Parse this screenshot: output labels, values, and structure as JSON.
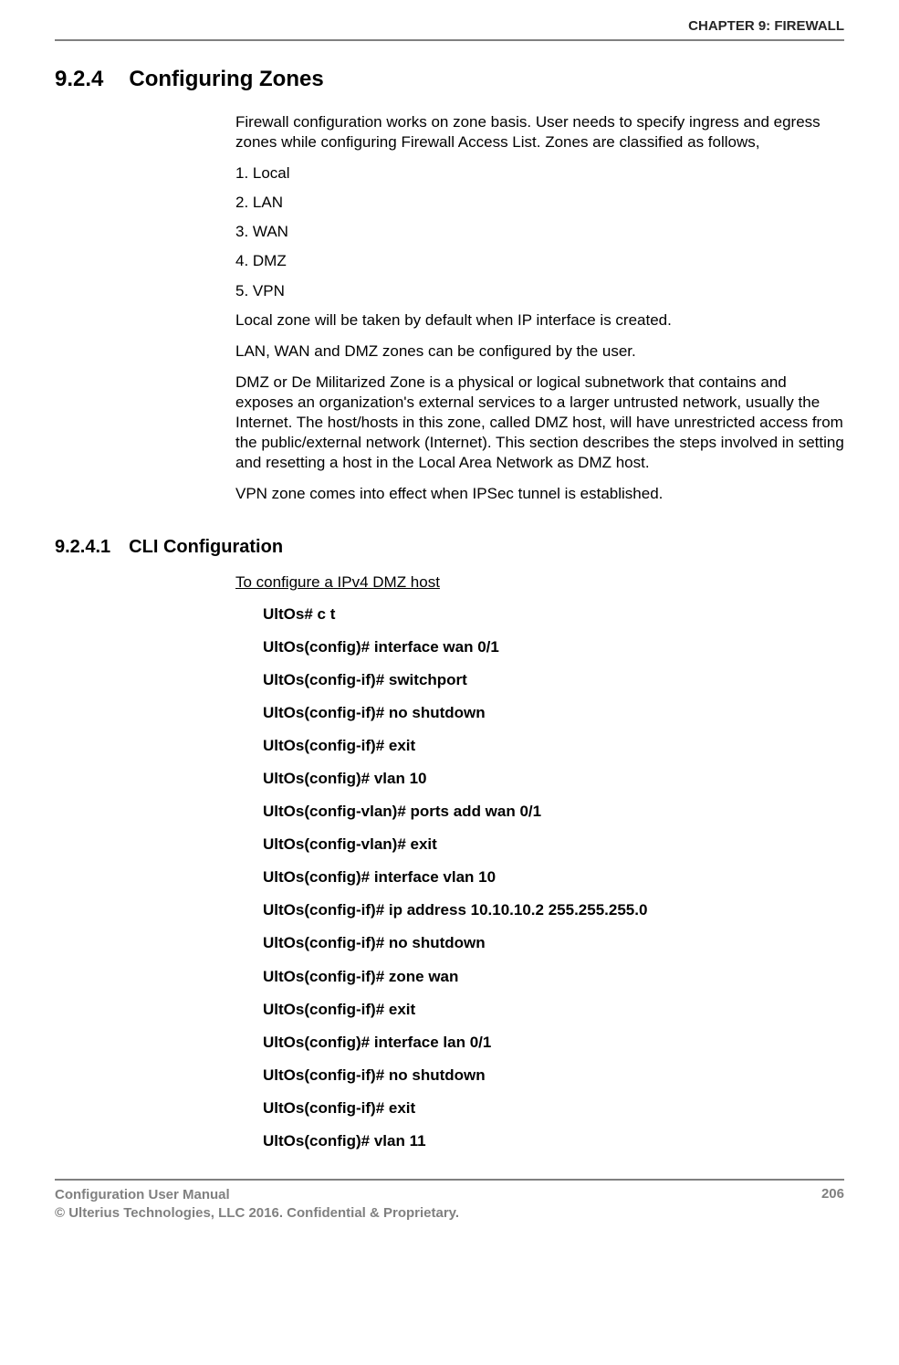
{
  "header": {
    "chapter": "CHAPTER 9: FIREWALL"
  },
  "section": {
    "num": "9.2.4",
    "title": "Configuring Zones"
  },
  "intro": "Firewall configuration works on zone basis. User needs to specify ingress and egress zones while configuring Firewall Access List.  Zones are classified as follows,",
  "zones": [
    "1. Local",
    "2. LAN",
    "3. WAN",
    "4. DMZ",
    "5. VPN"
  ],
  "para_local": "Local zone will be taken by default when IP interface is created.",
  "para_lan": "LAN, WAN and DMZ zones can be configured by the user.",
  "para_dmz": "DMZ or De Militarized Zone is a physical or logical subnetwork that contains and exposes an organization's external services to a larger untrusted network, usually the Internet. The host/hosts in this zone, called DMZ host, will have unrestricted access from the public/external network (Internet). This section describes the steps involved in setting and resetting a host in the Local Area Network as DMZ host.",
  "para_vpn": "VPN zone comes into effect when IPSec tunnel is established.",
  "subsection": {
    "num": "9.2.4.1",
    "title": "CLI Configuration"
  },
  "cli_heading": "To configure a IPv4 DMZ host",
  "cli": [
    "UltOs# c t",
    "UltOs(config)# interface wan 0/1",
    "UltOs(config-if)# switchport",
    "UltOs(config-if)# no shutdown",
    "UltOs(config-if)# exit",
    "UltOs(config)# vlan 10",
    "UltOs(config-vlan)# ports add wan 0/1",
    "UltOs(config-vlan)# exit",
    "UltOs(config)# interface vlan 10",
    "UltOs(config-if)# ip address 10.10.10.2 255.255.255.0",
    "UltOs(config-if)# no shutdown",
    "UltOs(config-if)# zone wan",
    "UltOs(config-if)# exit",
    "UltOs(config)# interface lan 0/1",
    "UltOs(config-if)# no shutdown",
    "UltOs(config-if)# exit",
    "UltOs(config)# vlan 11"
  ],
  "footer": {
    "line1": "Configuration User Manual",
    "line2": "© Ulterius Technologies, LLC 2016. Confidential & Proprietary.",
    "page": "206"
  }
}
